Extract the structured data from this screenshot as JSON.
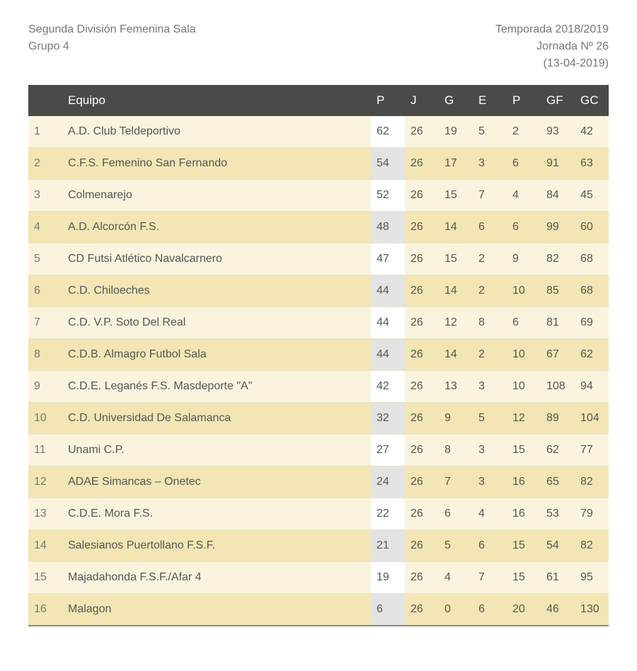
{
  "header": {
    "left_line1": "Segunda División Femenina Sala",
    "left_line2": "Grupo 4",
    "right_line1": "Temporada 2018/2019",
    "right_line2": "Jornada Nº 26",
    "right_line3": "(13-04-2019)"
  },
  "table": {
    "columns": {
      "rank": "",
      "team": "Equipo",
      "p": "P",
      "j": "J",
      "g": "G",
      "e": "E",
      "p2": "P",
      "gf": "GF",
      "gc": "GC"
    },
    "rows": [
      {
        "rank": "1",
        "team": "A.D. Club Teldeportivo",
        "p": "62",
        "j": "26",
        "g": "19",
        "e": "5",
        "p2": "2",
        "gf": "93",
        "gc": "42"
      },
      {
        "rank": "2",
        "team": "C.F.S. Femenino San Fernando",
        "p": "54",
        "j": "26",
        "g": "17",
        "e": "3",
        "p2": "6",
        "gf": "91",
        "gc": "63"
      },
      {
        "rank": "3",
        "team": "Colmenarejo",
        "p": "52",
        "j": "26",
        "g": "15",
        "e": "7",
        "p2": "4",
        "gf": "84",
        "gc": "45"
      },
      {
        "rank": "4",
        "team": "A.D. Alcorcón F.S.",
        "p": "48",
        "j": "26",
        "g": "14",
        "e": "6",
        "p2": "6",
        "gf": "99",
        "gc": "60"
      },
      {
        "rank": "5",
        "team": "CD Futsi Atlético Navalcarnero",
        "p": "47",
        "j": "26",
        "g": "15",
        "e": "2",
        "p2": "9",
        "gf": "82",
        "gc": "68"
      },
      {
        "rank": "6",
        "team": "C.D. Chiloeches",
        "p": "44",
        "j": "26",
        "g": "14",
        "e": "2",
        "p2": "10",
        "gf": "85",
        "gc": "68"
      },
      {
        "rank": "7",
        "team": "C.D. V.P. Soto Del Real",
        "p": "44",
        "j": "26",
        "g": "12",
        "e": "8",
        "p2": "6",
        "gf": "81",
        "gc": "69"
      },
      {
        "rank": "8",
        "team": "C.D.B. Almagro Futbol Sala",
        "p": "44",
        "j": "26",
        "g": "14",
        "e": "2",
        "p2": "10",
        "gf": "67",
        "gc": "62"
      },
      {
        "rank": "9",
        "team": "C.D.E. Leganés F.S. Masdeporte \"A\"",
        "p": "42",
        "j": "26",
        "g": "13",
        "e": "3",
        "p2": "10",
        "gf": "108",
        "gc": "94"
      },
      {
        "rank": "10",
        "team": "C.D. Universidad De Salamanca",
        "p": "32",
        "j": "26",
        "g": "9",
        "e": "5",
        "p2": "12",
        "gf": "89",
        "gc": "104"
      },
      {
        "rank": "11",
        "team": "Unami C.P.",
        "p": "27",
        "j": "26",
        "g": "8",
        "e": "3",
        "p2": "15",
        "gf": "62",
        "gc": "77"
      },
      {
        "rank": "12",
        "team": "ADAE Simancas – Onetec",
        "p": "24",
        "j": "26",
        "g": "7",
        "e": "3",
        "p2": "16",
        "gf": "65",
        "gc": "82"
      },
      {
        "rank": "13",
        "team": "C.D.E. Mora F.S.",
        "p": "22",
        "j": "26",
        "g": "6",
        "e": "4",
        "p2": "16",
        "gf": "53",
        "gc": "79"
      },
      {
        "rank": "14",
        "team": "Salesianos Puertollano F.S.F.",
        "p": "21",
        "j": "26",
        "g": "5",
        "e": "6",
        "p2": "15",
        "gf": "54",
        "gc": "82"
      },
      {
        "rank": "15",
        "team": "Majadahonda F.S.F./Afar 4",
        "p": "19",
        "j": "26",
        "g": "4",
        "e": "7",
        "p2": "15",
        "gf": "61",
        "gc": "95"
      },
      {
        "rank": "16",
        "team": "Malagon",
        "p": "6",
        "j": "26",
        "g": "0",
        "e": "6",
        "p2": "20",
        "gf": "46",
        "gc": "130"
      }
    ]
  },
  "colors": {
    "header_bg": "#4a4a48",
    "row_odd_bg": "#faf4de",
    "row_even_bg": "#f3e6b4",
    "pts_odd_bg": "#ffffff",
    "pts_even_bg": "#e3e3e3",
    "text": "#555555",
    "border": "#e8e2cc"
  }
}
